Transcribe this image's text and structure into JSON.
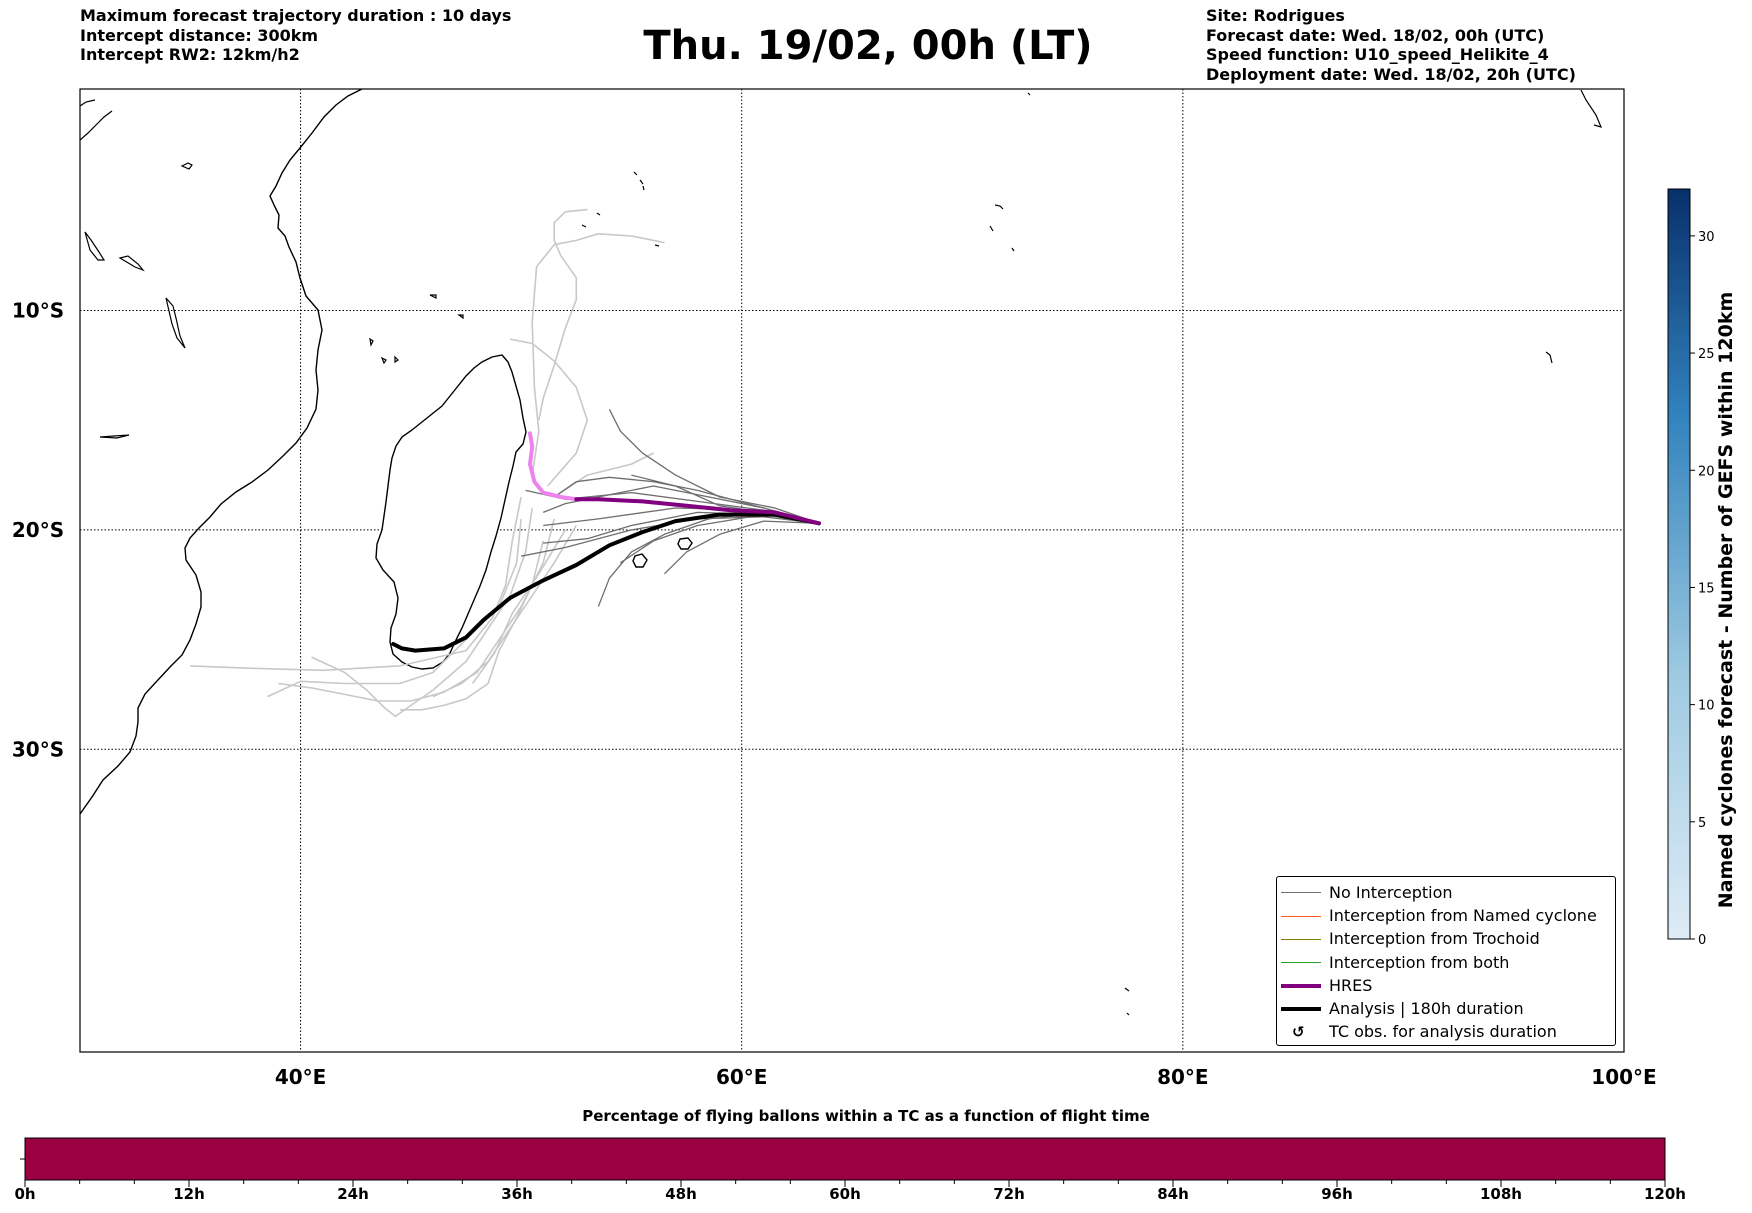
{
  "header": {
    "left_lines": [
      "Maximum forecast trajectory duration : 10 days",
      "Intercept distance: 300km",
      "Intercept RW2: 12km/h2"
    ],
    "title": "Thu. 19/02, 00h (LT)",
    "right_lines": [
      "Site: Rodrigues",
      "Forecast date: Wed. 18/02, 00h (UTC)",
      "Speed function: U10_speed_Helikite_4",
      "Deployment date: Wed. 18/02, 20h (UTC)"
    ]
  },
  "map": {
    "lon_range": [
      30,
      100
    ],
    "lat_range": [
      -43.8,
      0.1
    ],
    "lon_ticks": [
      {
        "value": 40,
        "label": "40°E"
      },
      {
        "value": 60,
        "label": "60°E"
      },
      {
        "value": 80,
        "label": "80°E"
      },
      {
        "value": 100,
        "label": "100°E"
      }
    ],
    "lat_ticks": [
      {
        "value": -10,
        "label": "10°S"
      },
      {
        "value": -20,
        "label": "20°S"
      },
      {
        "value": -30,
        "label": "30°S"
      }
    ],
    "tracks": {
      "hres": [
        [
          63.5,
          -19.7
        ],
        [
          61.5,
          -19.2
        ],
        [
          59.5,
          -19.1
        ],
        [
          57.5,
          -18.9
        ],
        [
          55.5,
          -18.7
        ],
        [
          53.5,
          -18.6
        ],
        [
          52.5,
          -18.6
        ],
        [
          51.8,
          -18.5
        ],
        [
          51.0,
          -18.3
        ],
        [
          50.6,
          -17.8
        ],
        [
          50.4,
          -17.0
        ],
        [
          50.5,
          -16.2
        ],
        [
          50.4,
          -15.6
        ]
      ],
      "analysis": [
        [
          63.5,
          -19.7
        ],
        [
          61.5,
          -19.3
        ],
        [
          59.0,
          -19.3
        ],
        [
          57.0,
          -19.6
        ],
        [
          55.5,
          -20.1
        ],
        [
          54.0,
          -20.7
        ],
        [
          52.5,
          -21.6
        ],
        [
          51.0,
          -22.3
        ],
        [
          49.5,
          -23.1
        ],
        [
          48.3,
          -24.1
        ],
        [
          47.5,
          -24.9
        ],
        [
          46.5,
          -25.4
        ],
        [
          45.2,
          -25.5
        ],
        [
          44.6,
          -25.4
        ],
        [
          44.2,
          -25.2
        ]
      ],
      "ensemble_dark": [
        [
          [
            63.5,
            -19.7
          ],
          [
            61,
            -19.0
          ],
          [
            58,
            -18.4
          ],
          [
            56,
            -18.0
          ],
          [
            54,
            -18.4
          ],
          [
            52,
            -18.8
          ],
          [
            51,
            -19.2
          ]
        ],
        [
          [
            63.5,
            -19.7
          ],
          [
            61,
            -19.1
          ],
          [
            58,
            -18.7
          ],
          [
            55,
            -18.3
          ],
          [
            52,
            -18.6
          ],
          [
            50.2,
            -18.2
          ]
        ],
        [
          [
            63.5,
            -19.7
          ],
          [
            61,
            -19.2
          ],
          [
            58.5,
            -19.5
          ],
          [
            56.5,
            -20.2
          ],
          [
            55,
            -21.0
          ],
          [
            54,
            -22.2
          ],
          [
            53.5,
            -23.5
          ]
        ],
        [
          [
            63.5,
            -19.7
          ],
          [
            61,
            -19.3
          ],
          [
            58,
            -19.8
          ],
          [
            56,
            -20.5
          ],
          [
            54.5,
            -21.5
          ]
        ],
        [
          [
            63.5,
            -19.7
          ],
          [
            61,
            -19.0
          ],
          [
            58,
            -18.2
          ],
          [
            56,
            -17.8
          ],
          [
            54,
            -17.6
          ],
          [
            52.5,
            -17.8
          ],
          [
            51.5,
            -18.5
          ]
        ],
        [
          [
            63.5,
            -19.7
          ],
          [
            61,
            -19.4
          ],
          [
            58,
            -19.5
          ],
          [
            55,
            -20.0
          ],
          [
            52,
            -20.8
          ],
          [
            50,
            -21.2
          ]
        ],
        [
          [
            63.5,
            -19.7
          ],
          [
            61,
            -19.6
          ],
          [
            59,
            -20.2
          ],
          [
            57.5,
            -21.0
          ],
          [
            56.5,
            -22.0
          ]
        ],
        [
          [
            63.5,
            -19.7
          ],
          [
            61,
            -19.1
          ],
          [
            57,
            -19.0
          ],
          [
            53.5,
            -19.5
          ],
          [
            51,
            -19.8
          ]
        ],
        [
          [
            63.5,
            -19.7
          ],
          [
            61,
            -19.3
          ],
          [
            58,
            -19.2
          ],
          [
            55,
            -19.8
          ],
          [
            53,
            -20.4
          ],
          [
            51,
            -20.6
          ]
        ],
        [
          [
            63.5,
            -19.7
          ],
          [
            61.5,
            -19.0
          ],
          [
            59,
            -18.5
          ],
          [
            57,
            -17.5
          ],
          [
            55.5,
            -16.5
          ],
          [
            54.5,
            -15.5
          ],
          [
            54,
            -14.5
          ]
        ],
        [
          [
            63.5,
            -19.7
          ],
          [
            61,
            -19.2
          ],
          [
            59,
            -18.9
          ],
          [
            57,
            -18.0
          ],
          [
            55,
            -17.5
          ]
        ]
      ],
      "ensemble_light": [
        [
          [
            50.8,
            -15.0
          ],
          [
            51.0,
            -14.0
          ],
          [
            51.5,
            -12.5
          ],
          [
            52,
            -10.8
          ],
          [
            52.5,
            -9.5
          ],
          [
            52.5,
            -8.5
          ],
          [
            51.8,
            -7.5
          ],
          [
            51.5,
            -6.8
          ],
          [
            51.5,
            -6.0
          ],
          [
            52.0,
            -5.5
          ],
          [
            53,
            -5.4
          ]
        ],
        [
          [
            50.5,
            -17.5
          ],
          [
            50.8,
            -15.5
          ],
          [
            50.6,
            -13.5
          ],
          [
            50.5,
            -10.5
          ],
          [
            50.7,
            -8.0
          ],
          [
            51.5,
            -7.0
          ],
          [
            52.5,
            -6.8
          ],
          [
            53.5,
            -6.5
          ],
          [
            55,
            -6.6
          ],
          [
            56.5,
            -6.9
          ]
        ],
        [
          [
            51.2,
            -18.0
          ],
          [
            52.5,
            -16.5
          ],
          [
            53,
            -15.0
          ],
          [
            52.5,
            -13.5
          ],
          [
            51.5,
            -12.3
          ],
          [
            50.5,
            -11.5
          ],
          [
            49.5,
            -11.3
          ]
        ],
        [
          [
            51.5,
            -18.5
          ],
          [
            53,
            -17.5
          ],
          [
            55,
            -17.0
          ],
          [
            56,
            -16.5
          ]
        ],
        [
          [
            50.0,
            -18.5
          ],
          [
            49.6,
            -20.5
          ],
          [
            49.3,
            -22.5
          ],
          [
            48.7,
            -24.0
          ],
          [
            47.5,
            -25.5
          ],
          [
            44.5,
            -26.2
          ],
          [
            41,
            -26.4
          ],
          [
            37.5,
            -26.3
          ],
          [
            35,
            -26.2
          ]
        ],
        [
          [
            50.0,
            -19.5
          ],
          [
            49.8,
            -21.5
          ],
          [
            49.0,
            -23.5
          ],
          [
            47.5,
            -25.0
          ],
          [
            46.0,
            -26.5
          ],
          [
            44.5,
            -27.0
          ],
          [
            42,
            -27.0
          ],
          [
            40,
            -26.9
          ],
          [
            38.5,
            -27.6
          ]
        ],
        [
          [
            50.5,
            -19.0
          ],
          [
            50.2,
            -21.0
          ],
          [
            49.5,
            -23.0
          ],
          [
            48.5,
            -24.5
          ],
          [
            47.5,
            -26.0
          ],
          [
            46,
            -27.3
          ],
          [
            45,
            -28.0
          ],
          [
            44.3,
            -28.5
          ],
          [
            43.8,
            -28.1
          ],
          [
            43.0,
            -27.3
          ],
          [
            42,
            -26.5
          ],
          [
            40.5,
            -25.8
          ]
        ],
        [
          [
            51.5,
            -19.5
          ],
          [
            51.0,
            -21.5
          ],
          [
            50.0,
            -23.5
          ],
          [
            49.0,
            -25.0
          ],
          [
            48.0,
            -26.5
          ],
          [
            46.5,
            -27.4
          ],
          [
            45.0,
            -27.8
          ],
          [
            43.5,
            -27.8
          ],
          [
            42,
            -27.5
          ],
          [
            40.5,
            -27.2
          ],
          [
            39,
            -27.0
          ]
        ],
        [
          [
            51,
            -20.5
          ],
          [
            50.5,
            -22.5
          ],
          [
            49.8,
            -24.0
          ],
          [
            49.0,
            -25.5
          ],
          [
            48.5,
            -27.0
          ],
          [
            47.5,
            -27.7
          ],
          [
            46.5,
            -28.0
          ],
          [
            45.5,
            -28.2
          ],
          [
            44.5,
            -28.2
          ]
        ],
        [
          [
            52.5,
            -19.8
          ],
          [
            51.5,
            -21.5
          ],
          [
            50.5,
            -23.0
          ],
          [
            49.5,
            -24.5
          ],
          [
            48.5,
            -26.0
          ],
          [
            47.3,
            -27.0
          ],
          [
            46.0,
            -27.6
          ]
        ],
        [
          [
            52,
            -20.0
          ],
          [
            50.8,
            -22.0
          ],
          [
            49.6,
            -23.8
          ],
          [
            48.8,
            -25.6
          ],
          [
            47.8,
            -27.0
          ]
        ]
      ]
    },
    "coastline_color": "#000000"
  },
  "legend": {
    "items": [
      {
        "label": "No Interception",
        "color": "#6e6e6e",
        "width": 1.3,
        "kind": "line"
      },
      {
        "label": "Interception from Named cyclone",
        "color": "#ff5722",
        "width": 1.3,
        "kind": "line"
      },
      {
        "label": "Interception from Trochoid",
        "color": "#808000",
        "width": 1.3,
        "kind": "line"
      },
      {
        "label": "Interception from both",
        "color": "#2ca02c",
        "width": 1.3,
        "kind": "line"
      },
      {
        "label": "HRES",
        "color": "#800080",
        "width": 4,
        "kind": "line"
      },
      {
        "label": "Analysis | 180h duration",
        "color": "#000000",
        "width": 4,
        "kind": "line"
      },
      {
        "label": "TC obs. for analysis duration",
        "color": "#000000",
        "width": 0,
        "kind": "marker",
        "symbol": "↺"
      }
    ]
  },
  "colorbar_right": {
    "label": "Named cyclones forecast - Number of GEFS within 120km",
    "ticks": [
      "0",
      "5",
      "10",
      "15",
      "20",
      "25",
      "30"
    ],
    "tick_values": [
      0,
      5,
      10,
      15,
      20,
      25,
      30
    ],
    "range": [
      0,
      32
    ],
    "color_low": "#deebf7",
    "color_high": "#08306b"
  },
  "colorbar_bottom": {
    "title": "Percentage of flying ballons within a TC as a function of flight time",
    "ticks": [
      "0h",
      "12h",
      "24h",
      "36h",
      "48h",
      "60h",
      "72h",
      "84h",
      "96h",
      "108h",
      "120h"
    ],
    "fill_color": "#9b0040"
  }
}
